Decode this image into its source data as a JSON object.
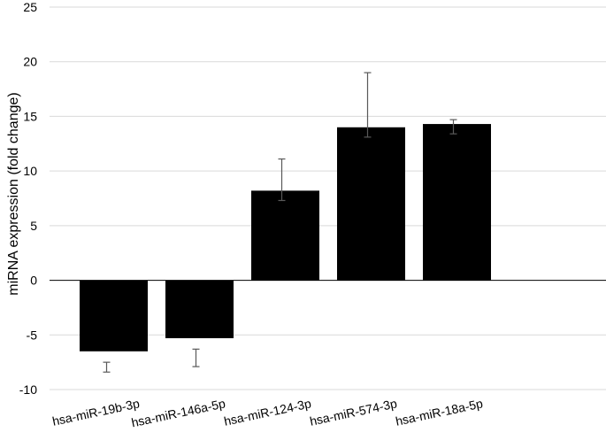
{
  "chart_data": {
    "type": "bar",
    "title": "",
    "xlabel": "",
    "ylabel": "miRNA expression (fold change)",
    "ylim": [
      -10,
      25
    ],
    "ytick_step": 5,
    "grid": true,
    "legend": "none",
    "categories": [
      "hsa-miR-19b-3p",
      "hsa-miR-146a-5p",
      "hsa-miR-124-3p",
      "hsa-miR-574-3p",
      "hsa-miR-18a-5p"
    ],
    "series": [
      {
        "values": [
          -6.5,
          -5.3,
          8.2,
          14.0,
          14.3
        ],
        "error_upper": [
          -7.5,
          -6.3,
          11.1,
          19.0,
          14.7
        ],
        "error_lower": [
          -8.4,
          -7.9,
          7.3,
          13.1,
          13.4
        ],
        "color": "#000000"
      }
    ],
    "colors": {
      "bar": "#000000",
      "grid": "#d9d9d9",
      "zero_line": "#000000",
      "error_bar": "#595959"
    }
  }
}
